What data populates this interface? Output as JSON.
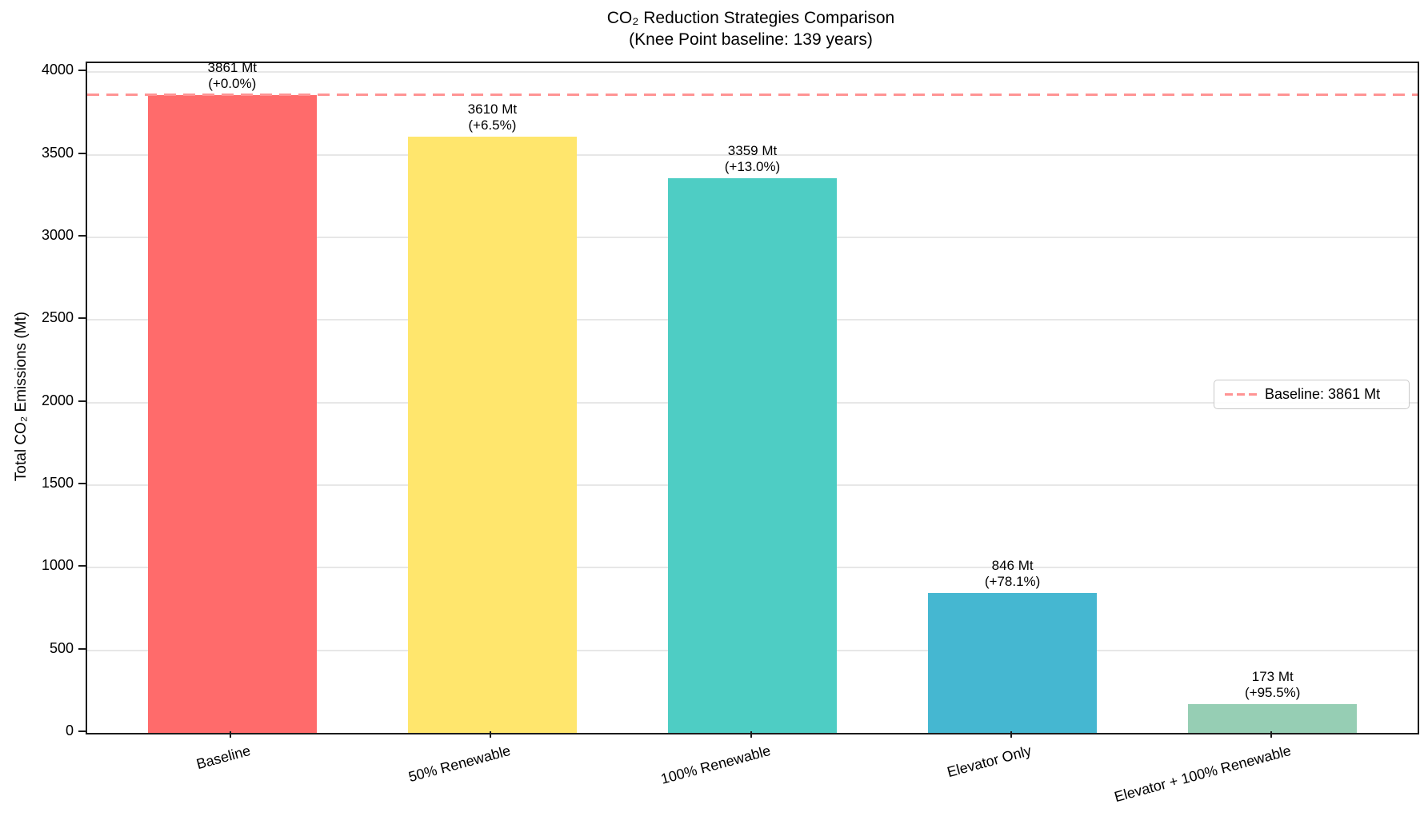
{
  "chart_data": {
    "type": "bar",
    "title": "CO₂ Reduction Strategies Comparison",
    "subtitle": "(Knee Point baseline: 139 years)",
    "ylabel": "Total CO₂ Emissions (Mt)",
    "xlabel": "",
    "categories": [
      "Baseline",
      "50% Renewable",
      "100% Renewable",
      "Elevator Only",
      "Elevator + 100% Renewable"
    ],
    "values": [
      3861,
      3610,
      3359,
      846,
      173
    ],
    "value_labels": [
      "3861 Mt",
      "3610 Mt",
      "3359 Mt",
      "846 Mt",
      "173 Mt"
    ],
    "pct_labels": [
      "(+0.0%)",
      "(+6.5%)",
      "(+13.0%)",
      "(+78.1%)",
      "(+95.5%)"
    ],
    "bar_colors": [
      "#ff6b6b",
      "#ffe66d",
      "#4ecdc4",
      "#45b7d1",
      "#96ceb4"
    ],
    "ylim": [
      0,
      4054
    ],
    "yticks": [
      0,
      500,
      1000,
      1500,
      2000,
      2500,
      3000,
      3500,
      4000
    ],
    "grid": true,
    "legend_position": "center right",
    "baseline": {
      "value": 3861,
      "label": "Baseline: 3861 Mt",
      "color": "#ff9494",
      "style": "dashed"
    }
  }
}
